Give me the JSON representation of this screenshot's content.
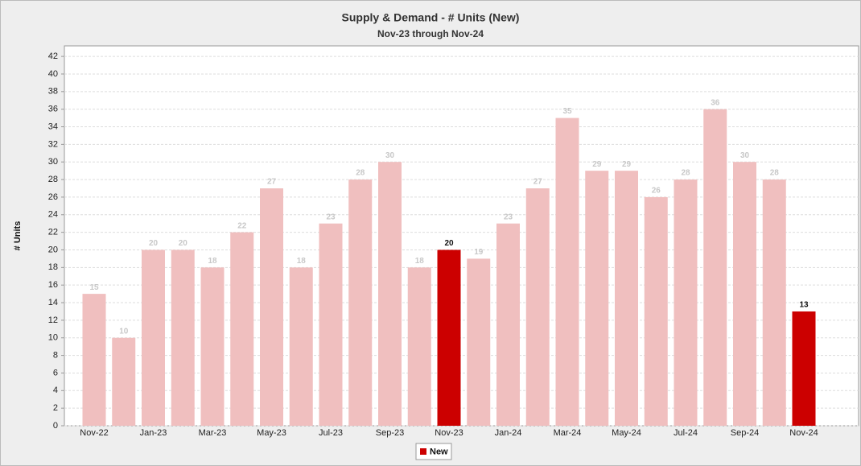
{
  "chart_data": {
    "type": "bar",
    "title": "Supply & Demand - # Units (New)",
    "subtitle": "Nov-23 through Nov-24",
    "y_label": "# Units",
    "categories": [
      "Nov-22",
      null,
      "Jan-23",
      null,
      "Mar-23",
      null,
      "May-23",
      null,
      "Jul-23",
      null,
      "Sep-23",
      null,
      "Nov-23",
      null,
      "Jan-24",
      null,
      "Mar-24",
      null,
      "May-24",
      null,
      "Jul-24",
      null,
      "Sep-24",
      null,
      "Nov-24"
    ],
    "series": [
      {
        "name": "New",
        "color": "#cc0000",
        "values": [
          15,
          10,
          20,
          20,
          18,
          22,
          27,
          18,
          23,
          28,
          30,
          18,
          20,
          19,
          23,
          27,
          35,
          29,
          29,
          26,
          28,
          36,
          30,
          28,
          13
        ]
      }
    ],
    "colors": [
      "#f0bfbf",
      "#f0bfbf",
      "#f0bfbf",
      "#f0bfbf",
      "#f0bfbf",
      "#f0bfbf",
      "#f0bfbf",
      "#f0bfbf",
      "#f0bfbf",
      "#f0bfbf",
      "#f0bfbf",
      "#f0bfbf",
      "#cc0000",
      "#f0bfbf",
      "#f0bfbf",
      "#f0bfbf",
      "#f0bfbf",
      "#f0bfbf",
      "#f0bfbf",
      "#f0bfbf",
      "#f0bfbf",
      "#f0bfbf",
      "#f0bfbf",
      "#f0bfbf",
      "#cc0000"
    ],
    "ylim": [
      0,
      43.2
    ],
    "yticks": [
      0,
      2,
      4,
      6,
      8,
      10,
      12,
      14,
      16,
      18,
      20,
      22,
      24,
      26,
      28,
      30,
      32,
      34,
      36,
      38,
      40,
      42
    ],
    "grid": true,
    "legend": "bottom"
  }
}
